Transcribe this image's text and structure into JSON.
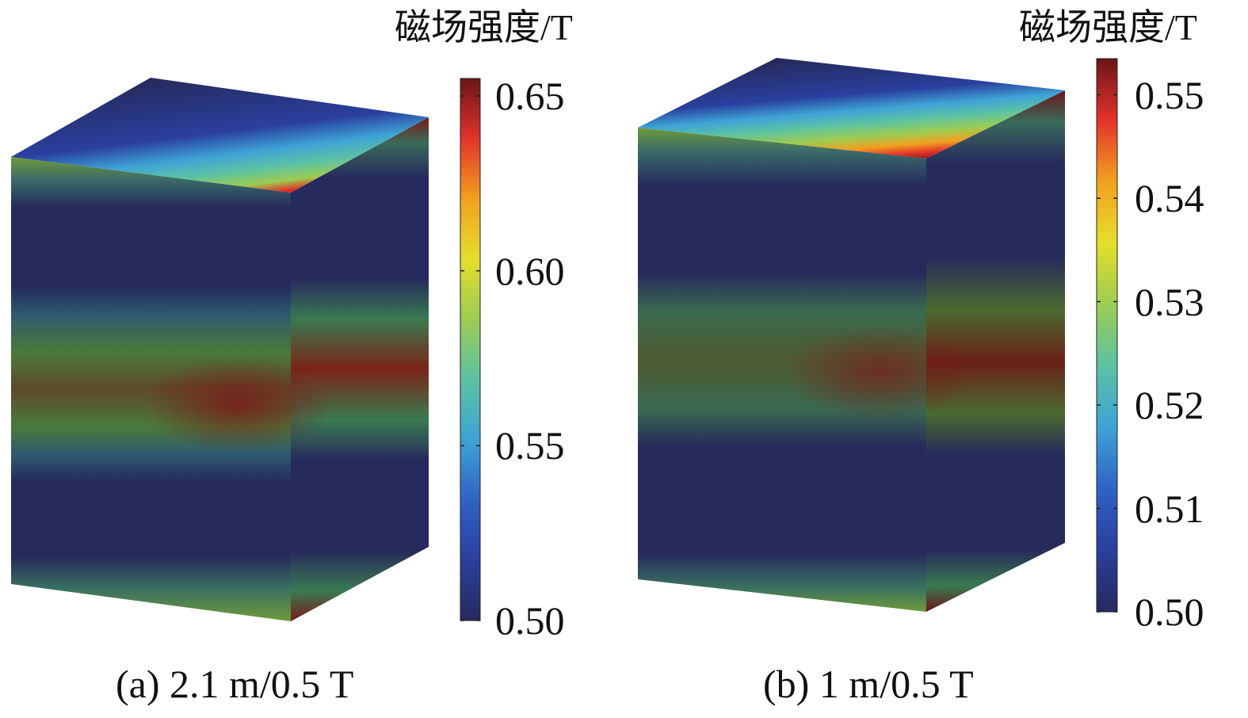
{
  "panels": [
    {
      "id": "a",
      "caption": "(a) 2.1 m/0.5 T",
      "colorbar": {
        "title": "磁场强度/T",
        "min": 0.5,
        "max": 0.655,
        "ticks": [
          {
            "value": 0.65,
            "label": "0.65"
          },
          {
            "value": 0.6,
            "label": "0.60"
          },
          {
            "value": 0.55,
            "label": "0.55"
          },
          {
            "value": 0.5,
            "label": "0.50"
          }
        ]
      }
    },
    {
      "id": "b",
      "caption": "(b) 1 m/0.5 T",
      "colorbar": {
        "title": "磁场强度/T",
        "min": 0.5,
        "max": 0.5535,
        "ticks": [
          {
            "value": 0.55,
            "label": "0.55"
          },
          {
            "value": 0.54,
            "label": "0.54"
          },
          {
            "value": 0.53,
            "label": "0.53"
          },
          {
            "value": 0.52,
            "label": "0.52"
          },
          {
            "value": 0.51,
            "label": "0.51"
          },
          {
            "value": 0.5,
            "label": "0.50"
          }
        ]
      }
    }
  ],
  "colormap": [
    "#262a5c",
    "#2a3f9e",
    "#2f62c4",
    "#3ea3d6",
    "#5cc2a4",
    "#9ccc52",
    "#e6de2c",
    "#f1a020",
    "#e2332a",
    "#6b1518"
  ]
}
